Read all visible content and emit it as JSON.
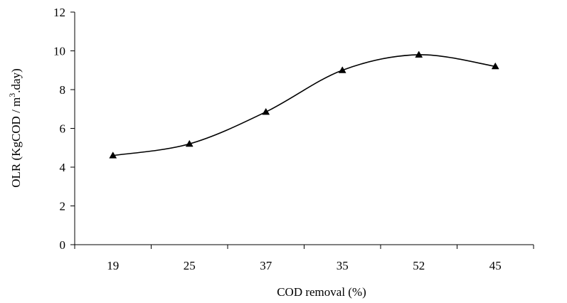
{
  "chart_data": {
    "type": "line",
    "title": "",
    "xlabel": "COD removal (%)",
    "ylabel": {
      "main": "OLR (KgCOD / m",
      "superscript": "3",
      "tail": ".day)"
    },
    "categories": [
      "19",
      "25",
      "37",
      "35",
      "52",
      "45"
    ],
    "series": [
      {
        "values": [
          4.6,
          5.2,
          6.85,
          9.0,
          9.8,
          9.2
        ],
        "color": "#000000",
        "marker": "triangle",
        "smooth": true
      }
    ],
    "ylim": [
      0,
      12
    ],
    "yticks": [
      0,
      2,
      4,
      6,
      8,
      10,
      12
    ],
    "grid": false,
    "legend": "none"
  }
}
